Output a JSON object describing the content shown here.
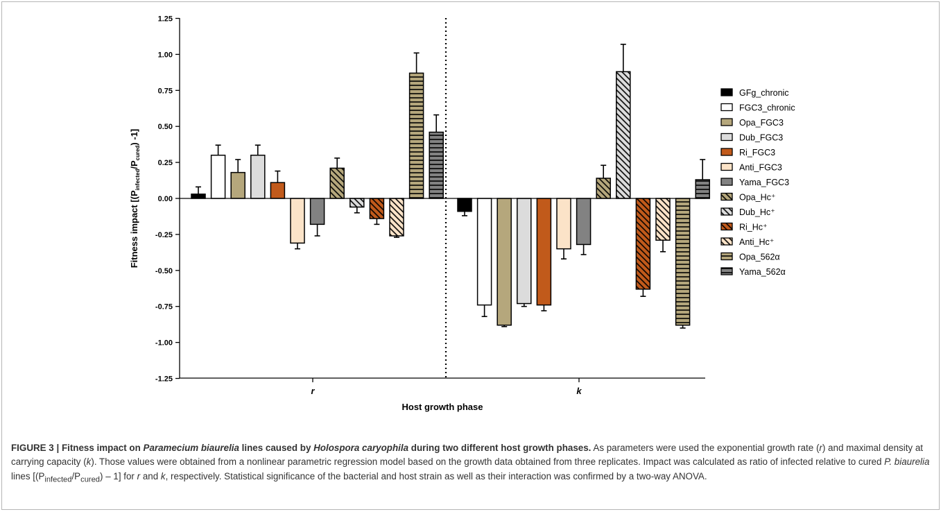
{
  "chart_data": {
    "type": "bar",
    "ylabel": "Fitness impact [(P_infected/P_cured) -1]",
    "xlabel": "Host growth phase",
    "categories": [
      "r",
      "k"
    ],
    "ylim": [
      -1.25,
      1.25
    ],
    "yticks": [
      "1.25",
      "1.00",
      "0.75",
      "0.50",
      "0.25",
      "0.00",
      "-0.25",
      "-0.50",
      "-0.75",
      "-1.00",
      "-1.25"
    ],
    "grid": false,
    "legend_position": "right",
    "series": [
      {
        "name": "GFg_chronic",
        "values": [
          0.03,
          -0.09
        ],
        "errors": [
          0.05,
          0.03
        ],
        "color": "#000000",
        "pattern": "solid"
      },
      {
        "name": "FGC3_chronic",
        "values": [
          0.3,
          -0.74
        ],
        "errors": [
          0.07,
          0.08
        ],
        "color": "#ffffff",
        "pattern": "solid"
      },
      {
        "name": "Opa_FGC3",
        "values": [
          0.18,
          -0.88
        ],
        "errors": [
          0.09,
          0.01
        ],
        "color": "#b5a77c",
        "pattern": "solid"
      },
      {
        "name": "Dub_FGC3",
        "values": [
          0.3,
          -0.73
        ],
        "errors": [
          0.07,
          0.02
        ],
        "color": "#dcdcdc",
        "pattern": "solid"
      },
      {
        "name": "Ri_FGC3",
        "values": [
          0.11,
          -0.74
        ],
        "errors": [
          0.08,
          0.04
        ],
        "color": "#c15a1b",
        "pattern": "solid"
      },
      {
        "name": "Anti_FGC3",
        "values": [
          -0.31,
          -0.35
        ],
        "errors": [
          0.04,
          0.07
        ],
        "color": "#fbe3c8",
        "pattern": "solid"
      },
      {
        "name": "Yama_FGC3",
        "values": [
          -0.18,
          -0.32
        ],
        "errors": [
          0.08,
          0.07
        ],
        "color": "#828282",
        "pattern": "solid"
      },
      {
        "name": "Opa_Hc⁺",
        "values": [
          0.21,
          0.14
        ],
        "errors": [
          0.07,
          0.09
        ],
        "color": "#b5a77c",
        "pattern": "diagonal"
      },
      {
        "name": "Dub_Hc⁺",
        "values": [
          -0.06,
          0.88
        ],
        "errors": [
          0.04,
          0.19
        ],
        "color": "#dcdcdc",
        "pattern": "diagonal"
      },
      {
        "name": "Ri_Hc⁺",
        "values": [
          -0.14,
          -0.63
        ],
        "errors": [
          0.04,
          0.05
        ],
        "color": "#c15a1b",
        "pattern": "diagonal"
      },
      {
        "name": "Anti_Hc⁺",
        "values": [
          -0.26,
          -0.29
        ],
        "errors": [
          0.01,
          0.08
        ],
        "color": "#fbe3c8",
        "pattern": "diagonal"
      },
      {
        "name": "Opa_562α",
        "values": [
          0.87,
          -0.88
        ],
        "errors": [
          0.14,
          0.02
        ],
        "color": "#b5a77c",
        "pattern": "horizontal"
      },
      {
        "name": "Yama_562α",
        "values": [
          0.46,
          0.13
        ],
        "errors": [
          0.12,
          0.14
        ],
        "color": "#828282",
        "pattern": "horizontal"
      }
    ]
  },
  "axis": {
    "ylabel_main": "Fitness impact [(P",
    "ylabel_sub1": "infected",
    "ylabel_mid": "/P",
    "ylabel_sub2": "cured",
    "ylabel_end": ") -1]"
  },
  "caption": {
    "head": "FIGURE 3 | Fitness impact on ",
    "head_italic1": "Paramecium biaurelia",
    "head_mid": " lines caused by ",
    "head_italic2": "Holospora caryophila",
    "head_end": " during two different host growth phases.",
    "body_1": " As parameters were used the exponential growth rate (",
    "r": "r",
    "body_2": ") and maximal density at carrying capacity (",
    "k": "k",
    "body_3": "). Those values were obtained from a nonlinear parametric regression model based on the growth data obtained from three replicates. Impact was calculated as ratio of infected relative to cured ",
    "pb": "P. biaurelia",
    "body_4": " lines [(P",
    "sub_inf": "infected",
    "body_5": "/P",
    "sub_cur": "cured",
    "body_6": ") – 1] for ",
    "r2": "r",
    "body_7": " and ",
    "k2": "k",
    "body_8": ", respectively. Statistical significance of the bacterial and host strain as well as their interaction was confirmed by a two-way ANOVA."
  }
}
